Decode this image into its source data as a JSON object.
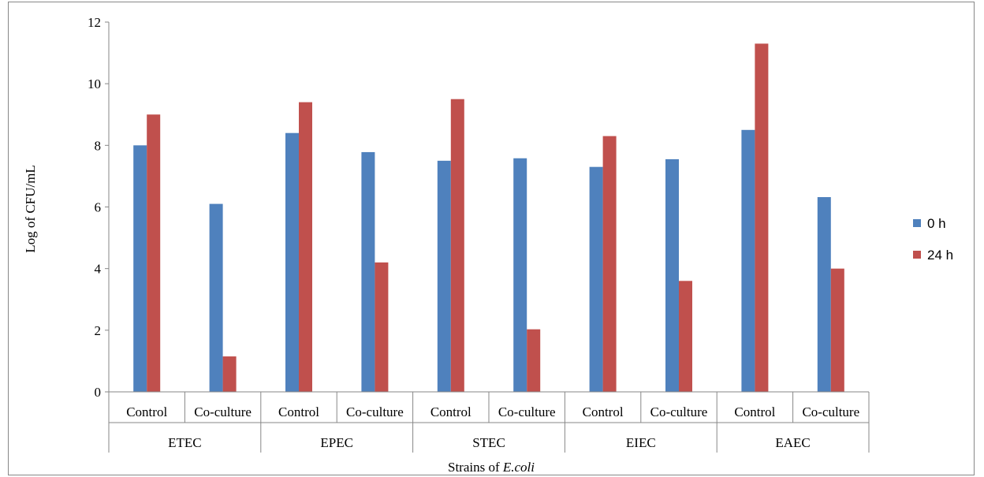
{
  "chart_data": {
    "type": "bar",
    "groups": [
      "ETEC",
      "EPEC",
      "STEC",
      "EIEC",
      "EAEC"
    ],
    "subcategories": [
      "Control",
      "Co-culture"
    ],
    "series": [
      {
        "name": "0 h",
        "color": "#4F81BD",
        "values": [
          8.0,
          6.1,
          8.4,
          7.78,
          7.5,
          7.58,
          7.3,
          7.55,
          8.5,
          6.32
        ]
      },
      {
        "name": "24 h",
        "color": "#C0504D",
        "values": [
          9.0,
          1.15,
          9.4,
          4.2,
          9.5,
          2.03,
          8.3,
          3.6,
          11.3,
          4.0
        ]
      }
    ],
    "ylim": [
      0,
      12
    ],
    "yticks": [
      "0",
      "2",
      "4",
      "6",
      "8",
      "10",
      "12"
    ],
    "ylabel": "Log of CFU/mL",
    "xlabel_prefix": "Strains of ",
    "xlabel_italic": "E.coli",
    "legend_position": "right",
    "grid": false
  }
}
